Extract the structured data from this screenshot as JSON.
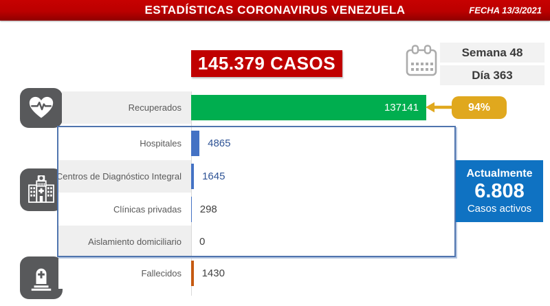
{
  "header": {
    "title": "ESTADÍSTICAS CORONAVIRUS VENEZUELA",
    "date_label": "FECHA 13/3/2021"
  },
  "summary": {
    "total_cases": "145.379 CASOS",
    "week": "Semana 48",
    "day": "Día 363"
  },
  "recovered_badge": {
    "percent": "94%",
    "color": "#e0a81e"
  },
  "active_box": {
    "line1": "Actualmente",
    "value": "6.808",
    "line2": "Casos activos",
    "color": "#0f72c2"
  },
  "icons": {
    "calendar": "calendar-icon",
    "recovered": "heartbeat-icon",
    "treatment": "hospital-icon",
    "deceased": "tombstone-icon"
  },
  "colors": {
    "header_red": "#c00000",
    "green_bar": "#00ae4f",
    "blue_bar": "#4472c4",
    "orange_bar": "#c55a11",
    "gold": "#e0a81e",
    "active_blue": "#0f72c2",
    "icon_gray": "#58595b",
    "box_border": "#4f74ae",
    "label_bg": "#efefef"
  },
  "chart_data": {
    "type": "bar",
    "orientation": "horizontal",
    "title": "145.379 CASOS",
    "xlabel": "",
    "ylabel": "",
    "xlim": [
      0,
      137141
    ],
    "grid": false,
    "legend": "none",
    "categories": [
      "Recuperados",
      "Hospitales",
      "Centros de Diagnóstico Integral",
      "Clínicas privadas",
      "Aislamiento domiciliario",
      "Fallecidos"
    ],
    "values": [
      137141,
      4865,
      1645,
      298,
      0,
      1430
    ],
    "annotations": {
      "recovered_percent": "94%",
      "active_cases": "6.808",
      "week": "Semana 48",
      "day": "Día 363",
      "date": "13/3/2021"
    },
    "rows": [
      {
        "label": "Recuperados",
        "value": 137141,
        "display": "137141",
        "bar_color": "#00ae4f",
        "value_color": "#ffffff",
        "value_inside": true,
        "label_bg": "#efefef"
      },
      {
        "label": "Hospitales",
        "value": 4865,
        "display": "4865",
        "bar_color": "#4472c4",
        "value_color": "#2e5395",
        "value_inside": false,
        "label_bg": "#ffffff"
      },
      {
        "label": "Centros de Diagnóstico Integral",
        "value": 1645,
        "display": "1645",
        "bar_color": "#4472c4",
        "value_color": "#2e5395",
        "value_inside": false,
        "label_bg": "#efefef"
      },
      {
        "label": "Clínicas privadas",
        "value": 298,
        "display": "298",
        "bar_color": "#4472c4",
        "value_color": "#404040",
        "value_inside": false,
        "label_bg": "#ffffff"
      },
      {
        "label": "Aislamiento domiciliario",
        "value": 0,
        "display": "0",
        "bar_color": "#4472c4",
        "value_color": "#404040",
        "value_inside": false,
        "label_bg": "#efefef"
      },
      {
        "label": "Fallecidos",
        "value": 1430,
        "display": "1430",
        "bar_color": "#c55a11",
        "value_color": "#404040",
        "value_inside": false,
        "label_bg": "#ffffff"
      }
    ]
  }
}
